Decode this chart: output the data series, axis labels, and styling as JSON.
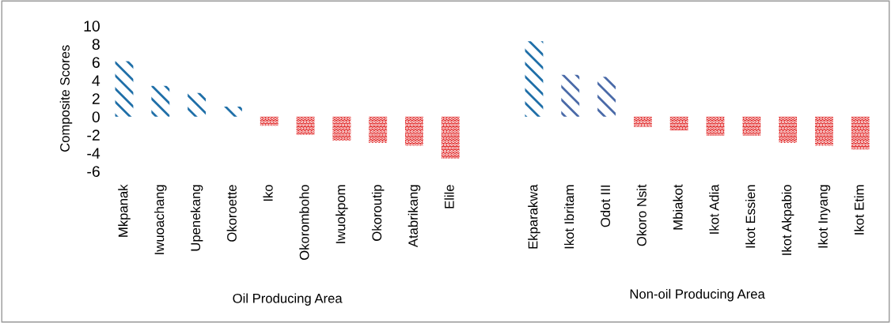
{
  "chart_data": [
    {
      "type": "bar",
      "ylabel": "Composite Scores",
      "xlabel": "Oil Producing Area",
      "ylim": [
        -6,
        10
      ],
      "yticks": [
        -6,
        -4,
        -2,
        0,
        2,
        4,
        6,
        8,
        10
      ],
      "grid": false,
      "categories": [
        "Mkpanak",
        "Iwuoachang",
        "Upenekang",
        "Okoroette",
        "Iko",
        "Okoromboho",
        "Iwuokpom",
        "Okoroutip",
        "Atabrikang",
        "Elile"
      ],
      "values": [
        6.1,
        3.4,
        2.6,
        1.1,
        -1.0,
        -2.0,
        -2.6,
        -2.9,
        -3.2,
        -4.6
      ],
      "colors": [
        "#1f6fa8",
        "#1f6fa8",
        "#1f6fa8",
        "#1f6fa8",
        "#e02020",
        "#e02020",
        "#e02020",
        "#e02020",
        "#e02020",
        "#e02020"
      ]
    },
    {
      "type": "bar",
      "xlabel": "Non-oil Producing Area",
      "ylim": [
        -6,
        10
      ],
      "tick_labels": "x",
      "grid": false,
      "categories": [
        "Ekparakwa",
        "Ikot Ibritam",
        "Odot III",
        "Okoro Nsit",
        "Mbiakot",
        "Ikot Adia",
        "Ikot Essien",
        "Ikot Akpabio",
        "Ikot Inyang",
        "Ikot Etim"
      ],
      "values": [
        8.3,
        4.6,
        4.4,
        -1.1,
        -1.5,
        -2.1,
        -2.1,
        -2.9,
        -3.2,
        -3.6
      ],
      "colors": [
        "#1f6fa8",
        "#4a6aa8",
        "#4a6aa8",
        "#e02020",
        "#e02020",
        "#e02020",
        "#e02020",
        "#e02020",
        "#e02020",
        "#e02020"
      ]
    }
  ]
}
